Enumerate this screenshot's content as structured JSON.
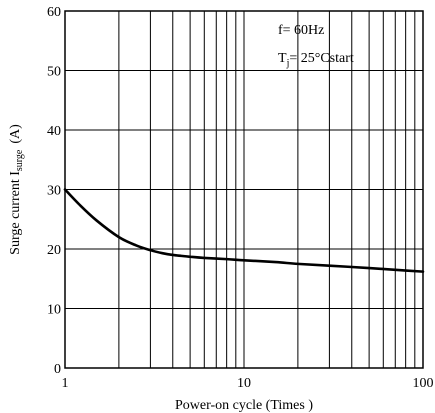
{
  "chart_data": {
    "type": "line",
    "title": "",
    "xlabel": "Power-on cycle (Times )",
    "ylabel": {
      "prefix": "Surge current I",
      "subscript": "surge",
      "suffix": "(A)"
    },
    "x_scale": "log",
    "xlim": [
      1,
      100
    ],
    "ylim": [
      0,
      60
    ],
    "x_tick_labels": [
      "1",
      "10",
      "100"
    ],
    "y_tick_labels": [
      "0",
      "10",
      "20",
      "30",
      "40",
      "50",
      "60"
    ],
    "grid": true,
    "annotations": [
      {
        "text": "f= 60Hz"
      },
      {
        "main": "T",
        "subscript": "j",
        "rest": "= 25°Cstart"
      }
    ],
    "series": [
      {
        "x": [
          1,
          1.2,
          1.5,
          2,
          2.5,
          3,
          3.5,
          4,
          5,
          6,
          8,
          10,
          15,
          20,
          30,
          50,
          70,
          100
        ],
        "y": [
          30,
          27.5,
          24.8,
          22.0,
          20.6,
          19.8,
          19.3,
          19.0,
          18.7,
          18.5,
          18.3,
          18.1,
          17.8,
          17.5,
          17.2,
          16.8,
          16.5,
          16.2
        ]
      }
    ],
    "colors": {
      "line": "#000000",
      "grid": "#000000"
    }
  }
}
